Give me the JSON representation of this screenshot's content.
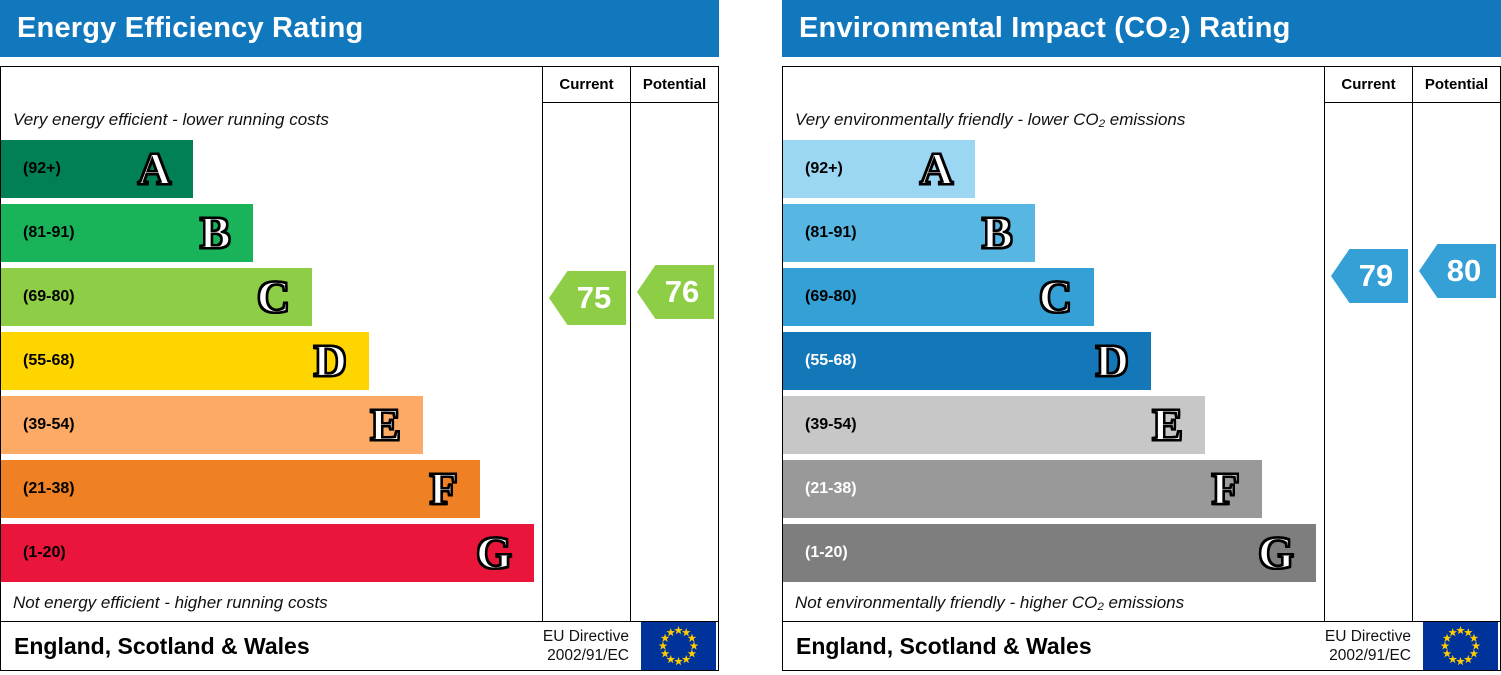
{
  "eu_flag": {
    "background": "#003399",
    "star_color": "#ffcc00"
  },
  "charts": [
    {
      "title": "Energy Efficiency Rating",
      "header_color": "#1278be",
      "col_current": "Current",
      "col_potential": "Potential",
      "top_note": "Very energy efficient - lower running costs",
      "bottom_note": "Not energy efficient - higher running costs",
      "bands": [
        {
          "range_label": "(92+)",
          "min": 92,
          "max": 100,
          "letter": "A",
          "color": "#008054",
          "width_pct": 35.5,
          "label_color": "#000000"
        },
        {
          "range_label": "(81-91)",
          "min": 81,
          "max": 91,
          "letter": "B",
          "color": "#19b459",
          "width_pct": 46.5,
          "label_color": "#000000"
        },
        {
          "range_label": "(69-80)",
          "min": 69,
          "max": 80,
          "letter": "C",
          "color": "#8dce46",
          "width_pct": 57.5,
          "label_color": "#000000"
        },
        {
          "range_label": "(55-68)",
          "min": 55,
          "max": 68,
          "letter": "D",
          "color": "#ffd500",
          "width_pct": 68,
          "label_color": "#000000"
        },
        {
          "range_label": "(39-54)",
          "min": 39,
          "max": 54,
          "letter": "E",
          "color": "#fcaa65",
          "width_pct": 78,
          "label_color": "#000000"
        },
        {
          "range_label": "(21-38)",
          "min": 21,
          "max": 38,
          "letter": "F",
          "color": "#ef8023",
          "width_pct": 88.5,
          "label_color": "#000000"
        },
        {
          "range_label": "(1-20)",
          "min": 1,
          "max": 20,
          "letter": "G",
          "color": "#e9153b",
          "width_pct": 98.5,
          "label_color": "#000000"
        }
      ],
      "current": {
        "value": 75,
        "color": "#8dce46"
      },
      "potential": {
        "value": 76,
        "color": "#8dce46"
      },
      "footer_region": "England, Scotland & Wales",
      "directive_line1": "EU Directive",
      "directive_line2": "2002/91/EC"
    },
    {
      "title": "Environmental Impact (CO₂) Rating",
      "header_color": "#1278be",
      "col_current": "Current",
      "col_potential": "Potential",
      "top_note": "Very environmentally friendly - lower CO₂ emissions",
      "bottom_note": "Not environmentally friendly - higher CO₂ emissions",
      "bands": [
        {
          "range_label": "(92+)",
          "min": 92,
          "max": 100,
          "letter": "A",
          "color": "#9bd7f3",
          "width_pct": 35.5,
          "label_color": "#000000"
        },
        {
          "range_label": "(81-91)",
          "min": 81,
          "max": 91,
          "letter": "B",
          "color": "#58b6e3",
          "width_pct": 46.5,
          "label_color": "#000000"
        },
        {
          "range_label": "(69-80)",
          "min": 69,
          "max": 80,
          "letter": "C",
          "color": "#35a0d6",
          "width_pct": 57.5,
          "label_color": "#000000"
        },
        {
          "range_label": "(55-68)",
          "min": 55,
          "max": 68,
          "letter": "D",
          "color": "#1477b8",
          "width_pct": 68,
          "label_color": "#ffffff"
        },
        {
          "range_label": "(39-54)",
          "min": 39,
          "max": 54,
          "letter": "E",
          "color": "#c7c7c7",
          "width_pct": 78,
          "label_color": "#000000"
        },
        {
          "range_label": "(21-38)",
          "min": 21,
          "max": 38,
          "letter": "F",
          "color": "#999999",
          "width_pct": 88.5,
          "label_color": "#ffffff"
        },
        {
          "range_label": "(1-20)",
          "min": 1,
          "max": 20,
          "letter": "G",
          "color": "#7e7e7e",
          "width_pct": 98.5,
          "label_color": "#ffffff"
        }
      ],
      "current": {
        "value": 79,
        "color": "#35a0d6"
      },
      "potential": {
        "value": 80,
        "color": "#35a0d6"
      },
      "footer_region": "England, Scotland & Wales",
      "directive_line1": "EU Directive",
      "directive_line2": "2002/91/EC"
    }
  ],
  "chart_data": [
    {
      "type": "bar",
      "title": "Energy Efficiency Rating",
      "categories": [
        "A (92+)",
        "B (81-91)",
        "C (69-80)",
        "D (55-68)",
        "E (39-54)",
        "F (21-38)",
        "G (1-20)"
      ],
      "band_colors": [
        "#008054",
        "#19b459",
        "#8dce46",
        "#ffd500",
        "#fcaa65",
        "#ef8023",
        "#e9153b"
      ],
      "scale": [
        1,
        100
      ],
      "series": [
        {
          "name": "Current",
          "values": [
            75
          ],
          "band": "C"
        },
        {
          "name": "Potential",
          "values": [
            76
          ],
          "band": "C"
        }
      ],
      "annotations": [
        "Very energy efficient - lower running costs",
        "Not energy efficient - higher running costs",
        "England, Scotland & Wales",
        "EU Directive 2002/91/EC"
      ],
      "legend_position": "top-right-columns"
    },
    {
      "type": "bar",
      "title": "Environmental Impact (CO₂) Rating",
      "categories": [
        "A (92+)",
        "B (81-91)",
        "C (69-80)",
        "D (55-68)",
        "E (39-54)",
        "F (21-38)",
        "G (1-20)"
      ],
      "band_colors": [
        "#9bd7f3",
        "#58b6e3",
        "#35a0d6",
        "#1477b8",
        "#c7c7c7",
        "#999999",
        "#7e7e7e"
      ],
      "scale": [
        1,
        100
      ],
      "series": [
        {
          "name": "Current",
          "values": [
            79
          ],
          "band": "C"
        },
        {
          "name": "Potential",
          "values": [
            80
          ],
          "band": "C"
        }
      ],
      "annotations": [
        "Very environmentally friendly - lower CO₂ emissions",
        "Not environmentally friendly - higher CO₂ emissions",
        "England, Scotland & Wales",
        "EU Directive 2002/91/EC"
      ],
      "legend_position": "top-right-columns"
    }
  ]
}
